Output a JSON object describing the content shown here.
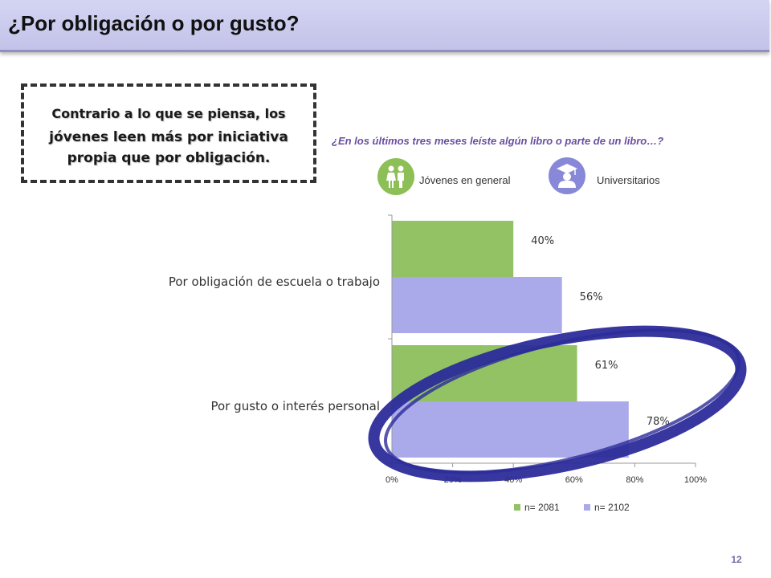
{
  "title": "¿Por obligación o por gusto?",
  "note": {
    "line1": "Contrario a lo que se piensa, los",
    "line2": "jóvenes leen más por iniciativa propia que por obligación."
  },
  "question": "¿En los últimos tres meses leíste algún libro o parte de un libro…?",
  "groups": {
    "general_label": "Jóvenes en general",
    "general_icon": "young-couple-icon",
    "university_label": "Universitarios",
    "university_icon": "graduate-icon"
  },
  "chart_data": {
    "type": "bar",
    "orientation": "horizontal",
    "categories": [
      "Por obligación de escuela o trabajo",
      "Por gusto o interés personal"
    ],
    "series": [
      {
        "name": "n= 2081",
        "values": [
          40,
          61
        ],
        "color": "#92c264"
      },
      {
        "name": "n= 2102",
        "values": [
          56,
          78
        ],
        "color": "#aaaaea"
      }
    ],
    "data_labels": [
      [
        "40%",
        "61%"
      ],
      [
        "56%",
        "78%"
      ]
    ],
    "xticks": [
      "0%",
      "20%",
      "40%",
      "60%",
      "80%",
      "100%"
    ],
    "xlim": [
      0,
      100
    ],
    "legend": "bottom",
    "highlight_color": "#2c2c9a"
  },
  "page_number": "12"
}
